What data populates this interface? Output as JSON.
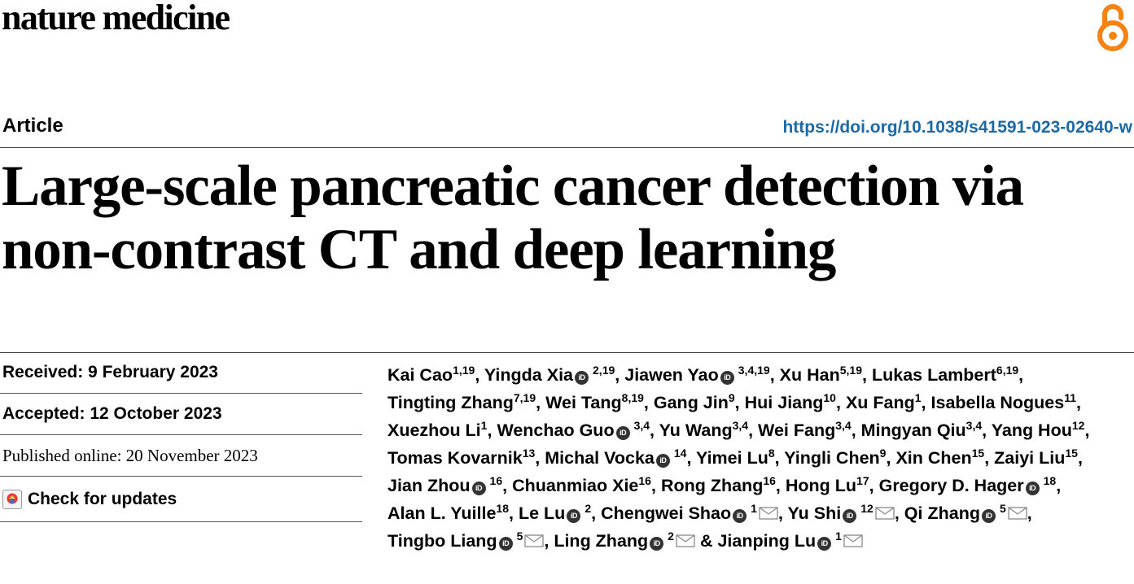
{
  "journal": "nature medicine",
  "article_type": "Article",
  "doi": "https://doi.org/10.1038/s41591-023-02640-w",
  "title_lines": [
    "Large-scale pancreatic cancer detection via",
    "non-contrast CT and deep learning"
  ],
  "dates": {
    "received": "Received: 9 February 2023",
    "accepted": "Accepted: 12 October 2023",
    "published": "Published online: 20 November 2023"
  },
  "check_updates": "Check for updates",
  "orcid_label": "iD",
  "icons": {
    "open_access": "open-access-lock-icon",
    "orcid": "orcid-icon",
    "mail": "mail-icon",
    "updates": "check-for-updates-icon"
  },
  "colors": {
    "open_access": "#f68212",
    "doi": "#1d69a6"
  },
  "authors": [
    {
      "name": "Kai Cao",
      "aff": "1,19",
      "orcid": false,
      "mail": false,
      "sep": ","
    },
    {
      "name": "Yingda Xia",
      "aff": "2,19",
      "orcid": true,
      "mail": false,
      "sep": ","
    },
    {
      "name": "Jiawen Yao",
      "aff": "3,4,19",
      "orcid": true,
      "mail": false,
      "sep": ","
    },
    {
      "name": "Xu Han",
      "aff": "5,19",
      "orcid": false,
      "mail": false,
      "sep": ","
    },
    {
      "name": "Lukas Lambert",
      "aff": "6,19",
      "orcid": false,
      "mail": false,
      "sep": ","
    },
    {
      "name": "Tingting Zhang",
      "aff": "7,19",
      "orcid": false,
      "mail": false,
      "sep": ","
    },
    {
      "name": "Wei Tang",
      "aff": "8,19",
      "orcid": false,
      "mail": false,
      "sep": ","
    },
    {
      "name": "Gang Jin",
      "aff": "9",
      "orcid": false,
      "mail": false,
      "sep": ","
    },
    {
      "name": "Hui Jiang",
      "aff": "10",
      "orcid": false,
      "mail": false,
      "sep": ","
    },
    {
      "name": "Xu Fang",
      "aff": "1",
      "orcid": false,
      "mail": false,
      "sep": ","
    },
    {
      "name": "Isabella Nogues",
      "aff": "11",
      "orcid": false,
      "mail": false,
      "sep": ","
    },
    {
      "name": "Xuezhou Li",
      "aff": "1",
      "orcid": false,
      "mail": false,
      "sep": ","
    },
    {
      "name": "Wenchao Guo",
      "aff": "3,4",
      "orcid": true,
      "mail": false,
      "sep": ","
    },
    {
      "name": "Yu Wang",
      "aff": "3,4",
      "orcid": false,
      "mail": false,
      "sep": ","
    },
    {
      "name": "Wei Fang",
      "aff": "3,4",
      "orcid": false,
      "mail": false,
      "sep": ","
    },
    {
      "name": "Mingyan Qiu",
      "aff": "3,4",
      "orcid": false,
      "mail": false,
      "sep": ","
    },
    {
      "name": "Yang Hou",
      "aff": "12",
      "orcid": false,
      "mail": false,
      "sep": ","
    },
    {
      "name": "Tomas Kovarnik",
      "aff": "13",
      "orcid": false,
      "mail": false,
      "sep": ","
    },
    {
      "name": "Michal Vocka",
      "aff": "14",
      "orcid": true,
      "mail": false,
      "sep": ","
    },
    {
      "name": "Yimei Lu",
      "aff": "8",
      "orcid": false,
      "mail": false,
      "sep": ","
    },
    {
      "name": "Yingli Chen",
      "aff": "9",
      "orcid": false,
      "mail": false,
      "sep": ","
    },
    {
      "name": "Xin Chen",
      "aff": "15",
      "orcid": false,
      "mail": false,
      "sep": ","
    },
    {
      "name": "Zaiyi Liu",
      "aff": "15",
      "orcid": false,
      "mail": false,
      "sep": ","
    },
    {
      "name": "Jian Zhou",
      "aff": "16",
      "orcid": true,
      "mail": false,
      "sep": ","
    },
    {
      "name": "Chuanmiao Xie",
      "aff": "16",
      "orcid": false,
      "mail": false,
      "sep": ","
    },
    {
      "name": "Rong Zhang",
      "aff": "16",
      "orcid": false,
      "mail": false,
      "sep": ","
    },
    {
      "name": "Hong Lu",
      "aff": "17",
      "orcid": false,
      "mail": false,
      "sep": ","
    },
    {
      "name": "Gregory D. Hager",
      "aff": "18",
      "orcid": true,
      "mail": false,
      "sep": ","
    },
    {
      "name": "Alan L. Yuille",
      "aff": "18",
      "orcid": false,
      "mail": false,
      "sep": ","
    },
    {
      "name": "Le Lu",
      "aff": "2",
      "orcid": true,
      "mail": false,
      "sep": ","
    },
    {
      "name": "Chengwei Shao",
      "aff": "1",
      "orcid": true,
      "mail": true,
      "sep": ","
    },
    {
      "name": "Yu Shi",
      "aff": "12",
      "orcid": true,
      "mail": true,
      "sep": ","
    },
    {
      "name": "Qi Zhang",
      "aff": "5",
      "orcid": true,
      "mail": true,
      "sep": ","
    },
    {
      "name": "Tingbo Liang",
      "aff": "5",
      "orcid": true,
      "mail": true,
      "sep": ","
    },
    {
      "name": "Ling Zhang",
      "aff": "2",
      "orcid": true,
      "mail": true,
      "sep": " &"
    },
    {
      "name": "Jianping Lu",
      "aff": "1",
      "orcid": true,
      "mail": true,
      "sep": ""
    }
  ]
}
